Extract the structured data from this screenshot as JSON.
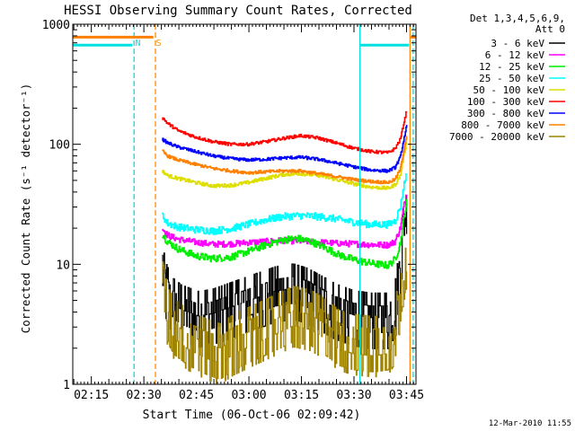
{
  "chart_data": {
    "type": "line",
    "title": "HESSI Observing Summary Count Rates, Corrected",
    "xlabel": "Start Time (06-Oct-06 02:09:42)",
    "ylabel": "Corrected Count Rate (s⁻¹ detector⁻¹)",
    "y_scale": "log",
    "ylim": [
      1,
      1000
    ],
    "xlim_minutes": [
      0,
      98
    ],
    "x_ticks": [
      {
        "label": "02:15",
        "minutes": 5.3
      },
      {
        "label": "02:30",
        "minutes": 20.3
      },
      {
        "label": "02:45",
        "minutes": 35.3
      },
      {
        "label": "03:00",
        "minutes": 50.3
      },
      {
        "label": "03:15",
        "minutes": 65.3
      },
      {
        "label": "03:30",
        "minutes": 80.3
      },
      {
        "label": "03:45",
        "minutes": 95.3
      }
    ],
    "y_ticks": [
      {
        "label": "1",
        "value": 1
      },
      {
        "label": "10",
        "value": 10
      },
      {
        "label": "100",
        "value": 100
      },
      {
        "label": "1000",
        "value": 1000
      }
    ],
    "legend": {
      "placement": "right",
      "header": [
        "Det 1,3,4,5,6,9,",
        "Att 0"
      ]
    },
    "annotations": {
      "flag_labels": [
        {
          "text": "N",
          "minutes": 18.6,
          "color": "#00e0e0"
        },
        {
          "text": "S",
          "minutes": 24.5,
          "color": "#ff8c00"
        }
      ],
      "timestamp": "12-Mar-2010 11:55"
    },
    "flag_bars": [
      {
        "color": "#ff7f00",
        "value": 780,
        "segments": [
          [
            0,
            23
          ],
          [
            96.5,
            98
          ]
        ]
      },
      {
        "color": "#00e0e0",
        "value": 670,
        "segments": [
          [
            0,
            17
          ],
          [
            82,
            96
          ]
        ]
      }
    ],
    "vlines": [
      {
        "minutes": 17.5,
        "color": "#00e0e0",
        "dash": true
      },
      {
        "minutes": 23.6,
        "color": "#ff8c00",
        "dash": true
      },
      {
        "minutes": 82.0,
        "color": "#00e0e0",
        "dash": false
      },
      {
        "minutes": 96.3,
        "color": "#ff8c00",
        "dash": false
      },
      {
        "minutes": 97.2,
        "color": "#00e0e0",
        "dash": true
      }
    ],
    "data_start_minutes": 25.5,
    "data_end_minutes": 95.5,
    "series": [
      {
        "name": "3 - 6 keV",
        "color": "#000000",
        "style": "blocky",
        "bins": [
          [
            25.5,
            9.5
          ],
          [
            26.5,
            6.5
          ],
          [
            27.5,
            5.5
          ],
          [
            28.5,
            4.8
          ],
          [
            31,
            4.2
          ],
          [
            36,
            3.7
          ],
          [
            40,
            3.9
          ],
          [
            46,
            4.5
          ],
          [
            52,
            5.2
          ],
          [
            58,
            6.0
          ],
          [
            63,
            6.3
          ],
          [
            67,
            5.8
          ],
          [
            71,
            5.0
          ],
          [
            75,
            4.3
          ],
          [
            80,
            3.8
          ],
          [
            85,
            3.6
          ],
          [
            90,
            3.6
          ],
          [
            92,
            4.5
          ],
          [
            93.5,
            10
          ],
          [
            94.5,
            22
          ],
          [
            95.5,
            35
          ]
        ],
        "noise": 0.18
      },
      {
        "name": "6 - 12 keV",
        "color": "#ff00ff",
        "points": [
          [
            25.5,
            20
          ],
          [
            27,
            17.5
          ],
          [
            30,
            16.2
          ],
          [
            35,
            15.3
          ],
          [
            40,
            14.7
          ],
          [
            45,
            14.8
          ],
          [
            50,
            15.2
          ],
          [
            55,
            15.5
          ],
          [
            60,
            15.8
          ],
          [
            65,
            15.6
          ],
          [
            70,
            15.3
          ],
          [
            75,
            15.0
          ],
          [
            80,
            14.8
          ],
          [
            85,
            14.6
          ],
          [
            90,
            14.5
          ],
          [
            92,
            15.5
          ],
          [
            93.5,
            20
          ],
          [
            94.5,
            30
          ],
          [
            95.5,
            42
          ]
        ],
        "noise": 0.06
      },
      {
        "name": "12 - 25 keV",
        "color": "#00ee00",
        "points": [
          [
            25.5,
            18
          ],
          [
            27,
            15.5
          ],
          [
            30,
            13.5
          ],
          [
            35,
            11.8
          ],
          [
            40,
            11.2
          ],
          [
            45,
            11.5
          ],
          [
            50,
            12.8
          ],
          [
            55,
            14.5
          ],
          [
            60,
            16.0
          ],
          [
            64,
            16.5
          ],
          [
            68,
            15.5
          ],
          [
            72,
            13.8
          ],
          [
            76,
            12.0
          ],
          [
            80,
            11.0
          ],
          [
            85,
            10.2
          ],
          [
            90,
            9.8
          ],
          [
            92,
            11
          ],
          [
            93.5,
            15
          ],
          [
            94.5,
            24
          ],
          [
            95.5,
            35
          ]
        ],
        "noise": 0.07
      },
      {
        "name": "25 - 50 keV",
        "color": "#00ffff",
        "points": [
          [
            25.5,
            26
          ],
          [
            27,
            22
          ],
          [
            30,
            20.5
          ],
          [
            35,
            19.5
          ],
          [
            40,
            19.0
          ],
          [
            45,
            19.8
          ],
          [
            50,
            21.5
          ],
          [
            55,
            23.5
          ],
          [
            60,
            25.0
          ],
          [
            65,
            25.5
          ],
          [
            70,
            25.0
          ],
          [
            75,
            24.0
          ],
          [
            80,
            22.5
          ],
          [
            85,
            21.5
          ],
          [
            90,
            21.5
          ],
          [
            92,
            23
          ],
          [
            93.5,
            30
          ],
          [
            94.5,
            45
          ],
          [
            95.5,
            60
          ]
        ],
        "noise": 0.07
      },
      {
        "name": "50 - 100 keV",
        "color": "#dddd00",
        "points": [
          [
            25.5,
            60
          ],
          [
            27,
            55
          ],
          [
            30,
            52
          ],
          [
            35,
            48
          ],
          [
            40,
            45
          ],
          [
            45,
            45.5
          ],
          [
            50,
            48
          ],
          [
            55,
            52
          ],
          [
            60,
            56
          ],
          [
            65,
            57
          ],
          [
            70,
            55
          ],
          [
            75,
            51
          ],
          [
            80,
            47
          ],
          [
            85,
            44
          ],
          [
            90,
            43
          ],
          [
            92,
            46
          ],
          [
            93.5,
            55
          ],
          [
            94.5,
            80
          ],
          [
            95.5,
            110
          ]
        ],
        "noise": 0.035
      },
      {
        "name": "100 - 300 keV",
        "color": "#ff0000",
        "points": [
          [
            25.5,
            168
          ],
          [
            27,
            150
          ],
          [
            30,
            130
          ],
          [
            35,
            115
          ],
          [
            40,
            105
          ],
          [
            45,
            100
          ],
          [
            50,
            100
          ],
          [
            55,
            105
          ],
          [
            60,
            112
          ],
          [
            65,
            118
          ],
          [
            70,
            113
          ],
          [
            75,
            103
          ],
          [
            80,
            93
          ],
          [
            85,
            87
          ],
          [
            90,
            85
          ],
          [
            92,
            92
          ],
          [
            93.5,
            110
          ],
          [
            94.5,
            150
          ],
          [
            95.5,
            200
          ]
        ],
        "noise": 0.03
      },
      {
        "name": "300 - 800 keV",
        "color": "#0000ff",
        "points": [
          [
            25.5,
            110
          ],
          [
            27,
            103
          ],
          [
            30,
            95
          ],
          [
            35,
            87
          ],
          [
            40,
            80
          ],
          [
            45,
            76
          ],
          [
            50,
            74
          ],
          [
            55,
            75
          ],
          [
            60,
            77
          ],
          [
            65,
            78
          ],
          [
            70,
            75
          ],
          [
            75,
            70
          ],
          [
            80,
            65
          ],
          [
            85,
            61
          ],
          [
            90,
            60
          ],
          [
            92,
            64
          ],
          [
            93.5,
            78
          ],
          [
            94.5,
            110
          ],
          [
            95.5,
            150
          ]
        ],
        "noise": 0.03
      },
      {
        "name": "800 - 7000 keV",
        "color": "#ff8000",
        "points": [
          [
            25.5,
            88
          ],
          [
            27,
            80
          ],
          [
            30,
            74
          ],
          [
            35,
            68
          ],
          [
            40,
            63
          ],
          [
            45,
            60
          ],
          [
            50,
            58
          ],
          [
            55,
            59
          ],
          [
            60,
            60
          ],
          [
            65,
            60
          ],
          [
            70,
            57
          ],
          [
            75,
            54
          ],
          [
            80,
            51
          ],
          [
            85,
            49
          ],
          [
            90,
            48
          ],
          [
            92,
            51
          ],
          [
            93.5,
            62
          ],
          [
            94.5,
            90
          ],
          [
            95.5,
            125
          ]
        ],
        "noise": 0.03
      },
      {
        "name": "7000 - 20000 keV",
        "color": "#a08400",
        "style": "blocky-low",
        "bins": [
          [
            25.5,
            7
          ],
          [
            26.5,
            4.8
          ],
          [
            27.5,
            3.8
          ],
          [
            29,
            3.2
          ],
          [
            33,
            2.6
          ],
          [
            38,
            2.2
          ],
          [
            42,
            2.0
          ],
          [
            46,
            2.4
          ],
          [
            52,
            2.9
          ],
          [
            58,
            3.5
          ],
          [
            63,
            4.1
          ],
          [
            68,
            3.8
          ],
          [
            72,
            3.2
          ],
          [
            76,
            2.6
          ],
          [
            80,
            2.4
          ],
          [
            86,
            2.3
          ],
          [
            90,
            2.4
          ],
          [
            92,
            3
          ],
          [
            93.5,
            6
          ],
          [
            94.5,
            10
          ],
          [
            95.5,
            12
          ]
        ],
        "noise": 0.28
      }
    ]
  }
}
